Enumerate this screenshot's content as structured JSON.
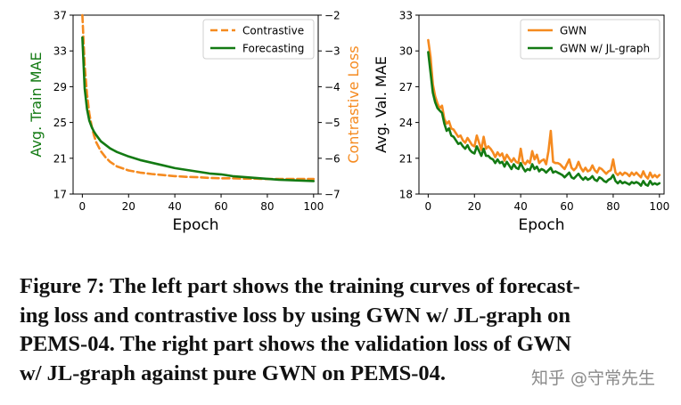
{
  "chart_data": [
    {
      "type": "line",
      "panel": "left",
      "title": "",
      "xlabel": "Epoch",
      "ylabel": "Avg. Train MAE",
      "y2label": "Contrastive Loss",
      "xlim": [
        -4,
        102
      ],
      "ylim": [
        17,
        37
      ],
      "y2lim": [
        -7,
        -2
      ],
      "xticks": [
        "0",
        "20",
        "40",
        "60",
        "80",
        "100"
      ],
      "yticks": [
        "17",
        "21",
        "25",
        "29",
        "33",
        "37"
      ],
      "y2ticks": [
        "−7",
        "−6",
        "−5",
        "−4",
        "−3",
        "−2"
      ],
      "legend_position": "top-right",
      "series": [
        {
          "name": "Contrastive",
          "axis": "right",
          "style": "dashed",
          "color": "#f58a1f",
          "x": [
            0,
            1,
            2,
            3,
            4,
            5,
            6,
            8,
            10,
            12,
            15,
            20,
            25,
            30,
            35,
            40,
            45,
            50,
            55,
            60,
            65,
            70,
            75,
            80,
            85,
            90,
            95,
            100
          ],
          "y": [
            -2.0,
            -3.4,
            -4.2,
            -4.75,
            -5.1,
            -5.35,
            -5.55,
            -5.8,
            -5.97,
            -6.1,
            -6.23,
            -6.34,
            -6.4,
            -6.44,
            -6.47,
            -6.5,
            -6.52,
            -6.53,
            -6.55,
            -6.56,
            -6.56,
            -6.57,
            -6.57,
            -6.58,
            -6.58,
            -6.58,
            -6.58,
            -6.58
          ]
        },
        {
          "name": "Forecasting",
          "axis": "left",
          "style": "solid",
          "color": "#137a13",
          "x": [
            0,
            1,
            2,
            3,
            4,
            5,
            6,
            8,
            10,
            12,
            15,
            20,
            25,
            30,
            35,
            40,
            45,
            50,
            55,
            60,
            65,
            70,
            75,
            80,
            85,
            90,
            95,
            100
          ],
          "y": [
            34.5,
            28.8,
            26.5,
            25.2,
            24.5,
            24.0,
            23.6,
            22.9,
            22.5,
            22.1,
            21.7,
            21.2,
            20.8,
            20.5,
            20.2,
            19.9,
            19.7,
            19.5,
            19.3,
            19.2,
            19.0,
            18.9,
            18.8,
            18.7,
            18.6,
            18.55,
            18.5,
            18.45
          ]
        }
      ]
    },
    {
      "type": "line",
      "panel": "right",
      "title": "",
      "xlabel": "Epoch",
      "ylabel": "Avg. Val. MAE",
      "xlim": [
        -4,
        102
      ],
      "ylim": [
        18,
        33
      ],
      "xticks": [
        "0",
        "20",
        "40",
        "60",
        "80",
        "100"
      ],
      "yticks": [
        "18",
        "21",
        "24",
        "27",
        "30",
        "33"
      ],
      "legend_position": "top-right",
      "series": [
        {
          "name": "GWN",
          "style": "solid",
          "color": "#f58a1f",
          "x": [
            0,
            1,
            2,
            3,
            4,
            5,
            6,
            7,
            8,
            9,
            10,
            11,
            12,
            13,
            14,
            15,
            16,
            17,
            18,
            19,
            20,
            21,
            22,
            23,
            24,
            25,
            26,
            27,
            28,
            29,
            30,
            31,
            32,
            33,
            34,
            35,
            36,
            37,
            38,
            39,
            40,
            41,
            42,
            43,
            44,
            45,
            46,
            47,
            48,
            49,
            50,
            51,
            52,
            53,
            54,
            55,
            56,
            57,
            58,
            59,
            60,
            61,
            62,
            63,
            64,
            65,
            66,
            67,
            68,
            69,
            70,
            71,
            72,
            73,
            74,
            75,
            76,
            77,
            78,
            79,
            80,
            81,
            82,
            83,
            84,
            85,
            86,
            87,
            88,
            89,
            90,
            91,
            92,
            93,
            94,
            95,
            96,
            97,
            98,
            99,
            100
          ],
          "y": [
            30.9,
            29.5,
            27.2,
            26.2,
            25.6,
            25.2,
            25.4,
            24.3,
            23.9,
            24.1,
            23.5,
            23.4,
            23.1,
            22.8,
            22.9,
            22.5,
            22.3,
            22.7,
            22.4,
            22.1,
            22.0,
            22.9,
            22.3,
            21.7,
            22.8,
            21.8,
            22.0,
            21.8,
            21.5,
            21.1,
            21.5,
            21.2,
            21.4,
            20.8,
            21.3,
            21.0,
            20.7,
            21.0,
            20.7,
            20.6,
            21.8,
            20.7,
            20.5,
            20.8,
            20.6,
            21.6,
            20.9,
            21.3,
            20.6,
            20.8,
            20.9,
            20.5,
            21.6,
            23.3,
            20.7,
            20.6,
            20.6,
            20.5,
            20.3,
            20.1,
            20.5,
            20.9,
            20.2,
            20.0,
            20.2,
            20.7,
            20.2,
            19.9,
            20.2,
            19.9,
            20.0,
            20.4,
            20.0,
            19.8,
            20.2,
            20.1,
            19.9,
            19.7,
            19.9,
            20.0,
            20.9,
            19.8,
            19.6,
            19.8,
            19.6,
            19.8,
            19.7,
            19.5,
            19.8,
            19.6,
            19.8,
            19.6,
            19.4,
            19.9,
            19.5,
            19.3,
            19.8,
            19.4,
            19.6,
            19.4,
            19.6
          ]
        },
        {
          "name": "GWN w/ JL-graph",
          "style": "solid",
          "color": "#137a13",
          "x": [
            0,
            1,
            2,
            3,
            4,
            5,
            6,
            7,
            8,
            9,
            10,
            11,
            12,
            13,
            14,
            15,
            16,
            17,
            18,
            19,
            20,
            21,
            22,
            23,
            24,
            25,
            26,
            27,
            28,
            29,
            30,
            31,
            32,
            33,
            34,
            35,
            36,
            37,
            38,
            39,
            40,
            41,
            42,
            43,
            44,
            45,
            46,
            47,
            48,
            49,
            50,
            51,
            52,
            53,
            54,
            55,
            56,
            57,
            58,
            59,
            60,
            61,
            62,
            63,
            64,
            65,
            66,
            67,
            68,
            69,
            70,
            71,
            72,
            73,
            74,
            75,
            76,
            77,
            78,
            79,
            80,
            81,
            82,
            83,
            84,
            85,
            86,
            87,
            88,
            89,
            90,
            91,
            92,
            93,
            94,
            95,
            96,
            97,
            98,
            99,
            100
          ],
          "y": [
            29.9,
            28.2,
            26.5,
            25.7,
            25.2,
            25.0,
            24.8,
            23.9,
            23.3,
            23.5,
            22.9,
            22.8,
            22.5,
            22.2,
            22.3,
            22.0,
            21.8,
            22.1,
            21.7,
            21.5,
            21.4,
            22.0,
            21.6,
            21.2,
            21.8,
            21.2,
            21.2,
            21.0,
            20.9,
            20.6,
            20.9,
            20.6,
            20.7,
            20.3,
            20.7,
            20.4,
            20.1,
            20.5,
            20.2,
            20.1,
            20.6,
            20.2,
            19.9,
            20.1,
            20.0,
            20.5,
            20.1,
            20.3,
            19.9,
            20.1,
            20.0,
            19.8,
            20.0,
            20.2,
            19.8,
            19.9,
            19.8,
            19.7,
            19.6,
            19.4,
            19.6,
            19.8,
            19.4,
            19.3,
            19.5,
            19.7,
            19.4,
            19.2,
            19.4,
            19.2,
            19.3,
            19.5,
            19.2,
            19.1,
            19.4,
            19.3,
            19.1,
            19.0,
            19.2,
            19.3,
            19.6,
            19.1,
            18.9,
            19.1,
            18.9,
            19.0,
            18.9,
            18.8,
            19.0,
            18.9,
            19.0,
            18.9,
            18.7,
            19.1,
            18.8,
            18.7,
            19.1,
            18.8,
            18.9,
            18.8,
            18.9
          ]
        }
      ]
    }
  ],
  "caption": {
    "lines": [
      "Figure 7: The left part shows the training curves of forecast-",
      "ing loss and contrastive loss by using GWN w/ JL-graph on",
      "PEMS-04. The right part shows the validation loss of GWN",
      "w/ JL-graph against pure GWN on PEMS-04."
    ]
  },
  "watermark": "知乎 @守常先生"
}
